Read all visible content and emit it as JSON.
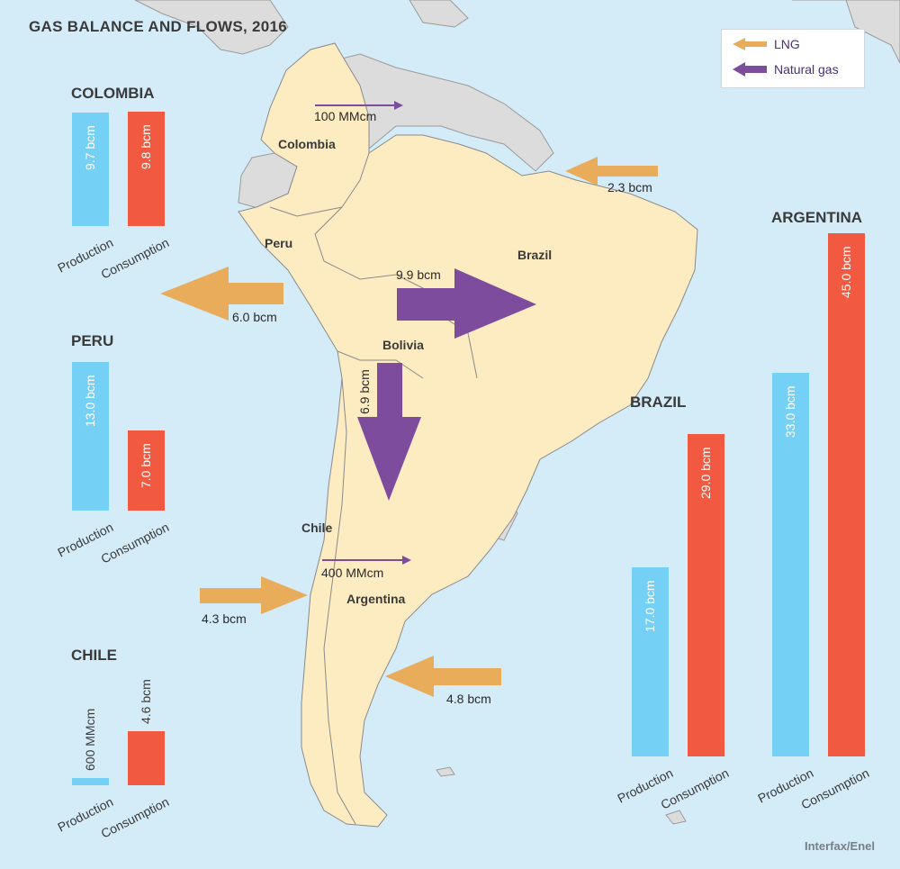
{
  "title": "GAS BALANCE AND FLOWS, 2016",
  "credit": "Interfax/Enel",
  "legend": {
    "lng": "LNG",
    "natural_gas": "Natural gas"
  },
  "colors": {
    "production": "#74d0f4",
    "consumption": "#f15a40",
    "lng": "#e8ac5a",
    "natural_gas": "#7d4c9c",
    "land": "#fdebc2",
    "neighbor": "#dcdcdc",
    "sea": "#d3ecf8"
  },
  "map_labels": {
    "colombia": "Colombia",
    "peru": "Peru",
    "brazil": "Brazil",
    "bolivia": "Bolivia",
    "chile": "Chile",
    "argentina": "Argentina"
  },
  "flows": {
    "colombia_venezuela": "100 MMcm",
    "brazil_lng": "2.3 bcm",
    "peru_lng": "6.0 bcm",
    "bolivia_brazil": "9.9 bcm",
    "bolivia_argentina": "6.9 bcm",
    "chile_argentina": "400 MMcm",
    "chile_lng": "4.3 bcm",
    "argentina_lng": "4.8 bcm"
  },
  "chart_data": [
    {
      "type": "bar",
      "title": "COLOMBIA",
      "categories": [
        "Production",
        "Consumption"
      ],
      "values": [
        9.7,
        9.8
      ],
      "value_labels": [
        "9.7 bcm",
        "9.8 bcm"
      ]
    },
    {
      "type": "bar",
      "title": "PERU",
      "categories": [
        "Production",
        "Consumption"
      ],
      "values": [
        13.0,
        7.0
      ],
      "value_labels": [
        "13.0 bcm",
        "7.0 bcm"
      ]
    },
    {
      "type": "bar",
      "title": "CHILE",
      "categories": [
        "Production",
        "Consumption"
      ],
      "values": [
        0.6,
        4.6
      ],
      "value_labels": [
        "600 MMcm",
        "4.6 bcm"
      ]
    },
    {
      "type": "bar",
      "title": "BRAZIL",
      "categories": [
        "Production",
        "Consumption"
      ],
      "values": [
        17.0,
        29.0
      ],
      "value_labels": [
        "17.0 bcm",
        "29.0 bcm"
      ]
    },
    {
      "type": "bar",
      "title": "ARGENTINA",
      "categories": [
        "Production",
        "Consumption"
      ],
      "values": [
        33.0,
        45.0
      ],
      "value_labels": [
        "33.0 bcm",
        "45.0 bcm"
      ]
    }
  ]
}
